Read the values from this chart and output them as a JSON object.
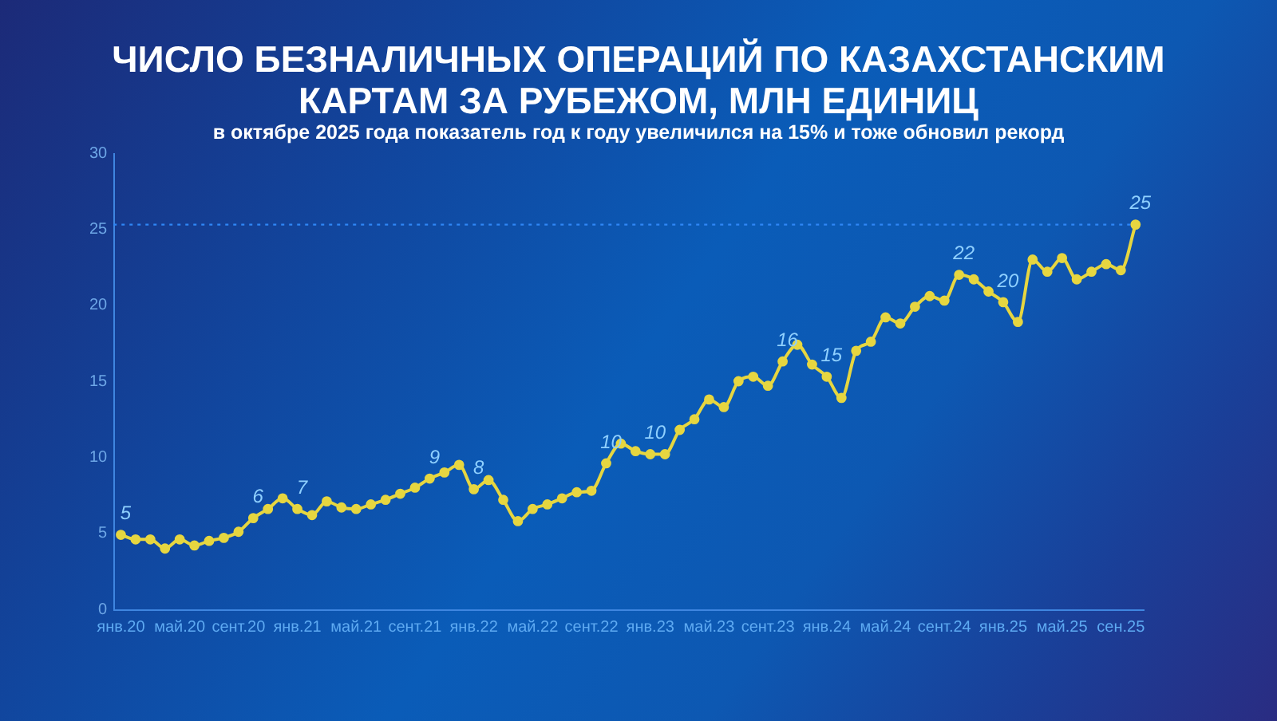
{
  "chart_data": {
    "type": "line",
    "title": "ЧИСЛО БЕЗНАЛИЧНЫХ ОПЕРАЦИЙ ПО КАЗАХСТАНСКИМ КАРТАМ ЗА РУБЕЖОМ, МЛН ЕДИНИЦ",
    "subtitle": "в октябре 2025 года показатель год к году увеличился на 15% и тоже обновил рекорд",
    "categories": [
      "янв.20",
      null,
      null,
      null,
      "май.20",
      null,
      null,
      null,
      "сент.20",
      null,
      null,
      null,
      "янв.21",
      null,
      null,
      null,
      "май.21",
      null,
      null,
      null,
      "сент.21",
      null,
      null,
      null,
      "янв.22",
      null,
      null,
      null,
      "май.22",
      null,
      null,
      null,
      "сент.22",
      null,
      null,
      null,
      "янв.23",
      null,
      null,
      null,
      "май.23",
      null,
      null,
      null,
      "сент.23",
      null,
      null,
      null,
      "янв.24",
      null,
      null,
      null,
      "май.24",
      null,
      null,
      null,
      "сент.24",
      null,
      null,
      null,
      "янв.25",
      null,
      null,
      null,
      "май.25",
      null,
      null,
      null,
      "сен.25",
      null
    ],
    "series": [
      {
        "color": "#e6d640",
        "values": [
          4.9,
          4.6,
          4.6,
          4.0,
          4.6,
          4.2,
          4.5,
          4.7,
          5.1,
          6.0,
          6.6,
          7.3,
          6.6,
          6.2,
          7.1,
          6.7,
          6.6,
          6.9,
          7.2,
          7.6,
          8.0,
          8.6,
          9.0,
          9.5,
          7.9,
          8.5,
          7.2,
          5.8,
          6.6,
          6.9,
          7.3,
          7.7,
          7.8,
          9.6,
          10.9,
          10.4,
          10.2,
          10.2,
          11.8,
          12.5,
          13.8,
          13.3,
          15.0,
          15.3,
          14.7,
          16.3,
          17.4,
          16.1,
          15.3,
          13.9,
          17.0,
          17.6,
          19.2,
          18.8,
          19.9,
          20.6,
          20.3,
          22.0,
          21.7,
          20.9,
          20.2,
          18.9,
          23.0,
          22.2,
          23.1,
          21.7,
          22.2,
          22.7,
          22.3,
          25.3
        ],
        "value_labels": [
          "5",
          null,
          null,
          null,
          null,
          null,
          null,
          null,
          null,
          "6",
          null,
          null,
          "7",
          null,
          null,
          null,
          null,
          null,
          null,
          null,
          null,
          "9",
          null,
          null,
          "8",
          null,
          null,
          null,
          null,
          null,
          null,
          null,
          null,
          "10",
          null,
          null,
          "10",
          null,
          null,
          null,
          null,
          null,
          null,
          null,
          null,
          "16",
          null,
          null,
          "15",
          null,
          null,
          null,
          null,
          null,
          null,
          null,
          null,
          "22",
          null,
          null,
          "20",
          null,
          null,
          null,
          null,
          null,
          null,
          null,
          null,
          "25"
        ]
      }
    ],
    "ylim": [
      0,
      30
    ],
    "yticks": [
      0,
      5,
      10,
      15,
      20,
      25,
      30
    ],
    "ref_lines": [
      {
        "axis": "y",
        "value": 25.3,
        "color": "#2f86f5",
        "line_style": "dotted"
      }
    ],
    "grid": false,
    "legend": false,
    "marker": "circle",
    "line_style": "solid"
  }
}
